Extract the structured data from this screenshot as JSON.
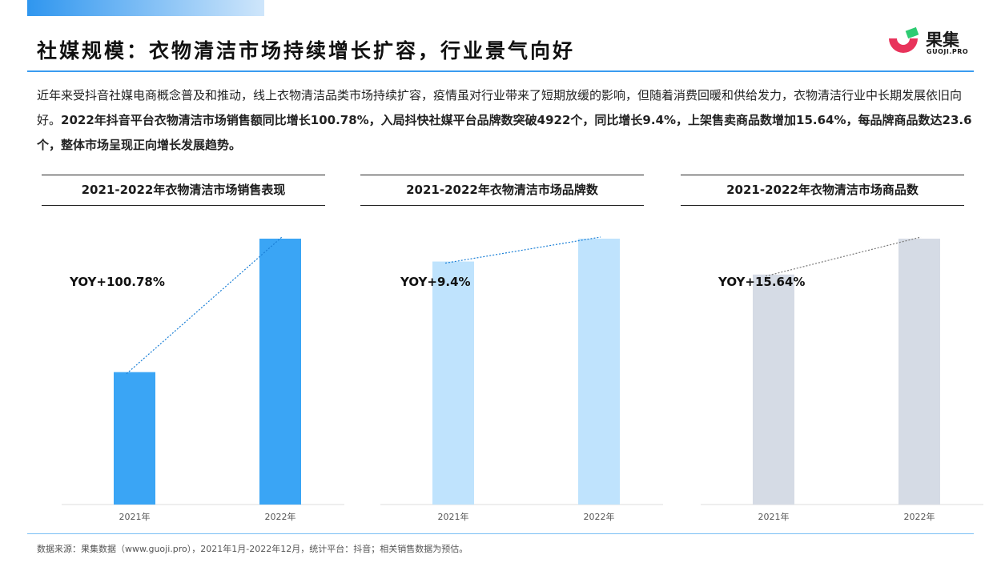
{
  "header": {
    "title": "社媒规模：衣物清洁市场持续增长扩容，行业景气向好",
    "logo_text": "果集",
    "logo_sub": "GUOJI.PRO"
  },
  "summary": {
    "part1": "近年来受抖音社媒电商概念普及和推动，线上衣物清洁品类市场持续扩容，疫情虽对行业带来了短期放缓的影响，但随着消费回暖和供给发力，衣物清洁行业中长期发展依旧向好。",
    "part2": "2022年抖音平台衣物清洁市场销售额同比增长100.78%，入局抖快社媒平台品牌数突破4922个，同比增长9.4%，上架售卖商品数增加15.64%，每品牌商品数达23.6个，整体市场呈现正向增长发展趋势。"
  },
  "colors": {
    "accent": "#3a9cf0",
    "bar1": "#3aa5f5",
    "bar2": "#bfe3fd",
    "bar3": "#d5dbe5",
    "trend1": "#1a7fd6",
    "trend3": "#7b7b7b"
  },
  "chart_data": [
    {
      "type": "bar",
      "title": "2021-2022年衣物清洁市场销售表现",
      "categories": [
        "2021年",
        "2022年"
      ],
      "values": [
        0.498,
        1.0
      ],
      "annotation": "YOY+100.78%"
    },
    {
      "type": "bar",
      "title": "2021-2022年衣物清洁市场品牌数",
      "categories": [
        "2021年",
        "2022年"
      ],
      "values": [
        0.914,
        1.0
      ],
      "annotation": "YOY+9.4%"
    },
    {
      "type": "bar",
      "title": "2021-2022年衣物清洁市场商品数",
      "categories": [
        "2021年",
        "2022年"
      ],
      "values": [
        0.865,
        1.0
      ],
      "annotation": "YOY+15.64%"
    }
  ],
  "footer": {
    "source": "数据来源：果集数据（www.guoji.pro），2021年1月-2022年12月，统计平台：抖音；相关销售数据为预估。"
  }
}
